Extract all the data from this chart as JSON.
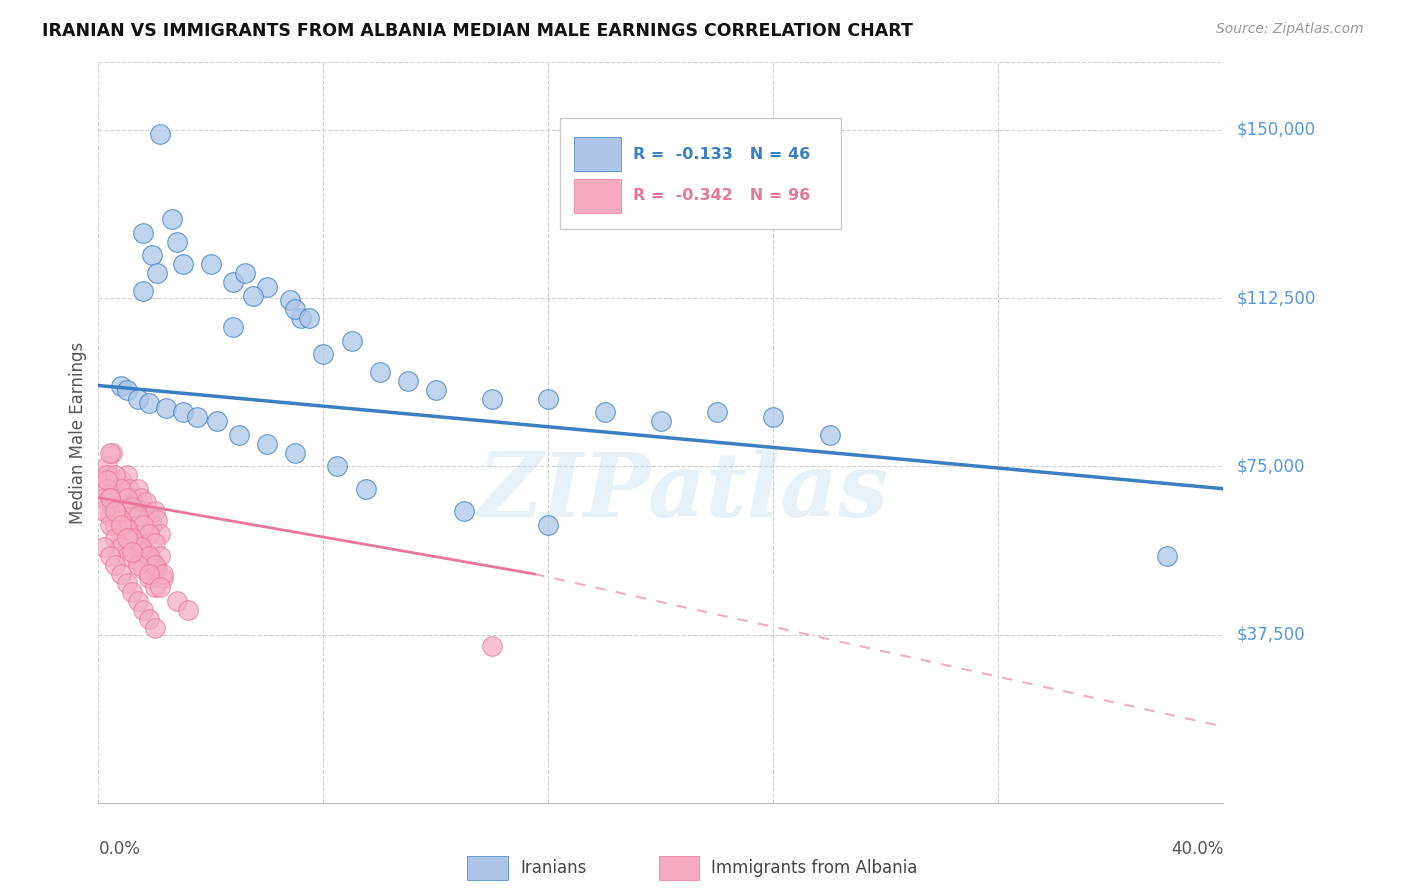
{
  "title": "IRANIAN VS IMMIGRANTS FROM ALBANIA MEDIAN MALE EARNINGS CORRELATION CHART",
  "source": "Source: ZipAtlas.com",
  "ylabel": "Median Male Earnings",
  "ytick_values": [
    37500,
    75000,
    112500,
    150000
  ],
  "ylim": [
    0,
    165000
  ],
  "xlim": [
    0.0,
    0.4
  ],
  "watermark": "ZIPatlas",
  "legend_r_iranian": "-0.133",
  "legend_n_iranian": "46",
  "legend_r_albania": "-0.342",
  "legend_n_albania": "96",
  "iranian_color": "#adc6e8",
  "albania_color": "#f5aac0",
  "iranian_line_color": "#3a7fc1",
  "albania_line_color": "#e8789a",
  "background_color": "#ffffff",
  "grid_color": "#d0d0d0",
  "iranians_x": [
    0.022,
    0.026,
    0.016,
    0.019,
    0.016,
    0.021,
    0.028,
    0.03,
    0.04,
    0.048,
    0.052,
    0.06,
    0.068,
    0.072,
    0.048,
    0.055,
    0.07,
    0.075,
    0.08,
    0.09,
    0.1,
    0.11,
    0.12,
    0.14,
    0.16,
    0.18,
    0.2,
    0.22,
    0.24,
    0.26,
    0.008,
    0.01,
    0.014,
    0.018,
    0.024,
    0.03,
    0.035,
    0.042,
    0.05,
    0.06,
    0.07,
    0.085,
    0.095,
    0.13,
    0.16,
    0.38
  ],
  "iranians_y": [
    149000,
    130000,
    127000,
    122000,
    114000,
    118000,
    125000,
    120000,
    120000,
    116000,
    118000,
    115000,
    112000,
    108000,
    106000,
    113000,
    110000,
    108000,
    100000,
    103000,
    96000,
    94000,
    92000,
    90000,
    90000,
    87000,
    85000,
    87000,
    86000,
    82000,
    93000,
    92000,
    90000,
    89000,
    88000,
    87000,
    86000,
    85000,
    82000,
    80000,
    78000,
    75000,
    70000,
    65000,
    62000,
    55000
  ],
  "albania_x": [
    0.003,
    0.004,
    0.005,
    0.006,
    0.007,
    0.008,
    0.009,
    0.01,
    0.011,
    0.012,
    0.013,
    0.014,
    0.015,
    0.016,
    0.017,
    0.018,
    0.019,
    0.02,
    0.021,
    0.022,
    0.003,
    0.005,
    0.007,
    0.009,
    0.011,
    0.013,
    0.015,
    0.017,
    0.019,
    0.021,
    0.004,
    0.006,
    0.008,
    0.01,
    0.012,
    0.014,
    0.016,
    0.018,
    0.02,
    0.022,
    0.003,
    0.005,
    0.007,
    0.009,
    0.011,
    0.013,
    0.015,
    0.018,
    0.02,
    0.023,
    0.002,
    0.004,
    0.006,
    0.008,
    0.01,
    0.012,
    0.014,
    0.016,
    0.018,
    0.02,
    0.003,
    0.004,
    0.006,
    0.008,
    0.01,
    0.012,
    0.015,
    0.018,
    0.02,
    0.023,
    0.002,
    0.004,
    0.006,
    0.008,
    0.01,
    0.014,
    0.018,
    0.022,
    0.028,
    0.032,
    0.002,
    0.004,
    0.006,
    0.008,
    0.01,
    0.012,
    0.014,
    0.016,
    0.018,
    0.02,
    0.004,
    0.006,
    0.008,
    0.01,
    0.012,
    0.14
  ],
  "albania_y": [
    75000,
    72000,
    78000,
    70000,
    68000,
    72000,
    68000,
    73000,
    70000,
    68000,
    66000,
    70000,
    68000,
    65000,
    67000,
    64000,
    62000,
    65000,
    63000,
    60000,
    73000,
    68000,
    67000,
    64000,
    62000,
    60000,
    58000,
    56000,
    54000,
    52000,
    78000,
    73000,
    70000,
    68000,
    66000,
    64000,
    62000,
    60000,
    58000,
    55000,
    70000,
    66000,
    64000,
    62000,
    60000,
    58000,
    56000,
    54000,
    52000,
    50000,
    68000,
    64000,
    62000,
    60000,
    58000,
    56000,
    54000,
    52000,
    50000,
    48000,
    72000,
    68000,
    65000,
    63000,
    61000,
    59000,
    57000,
    55000,
    53000,
    51000,
    65000,
    62000,
    59000,
    57000,
    55000,
    53000,
    51000,
    48000,
    45000,
    43000,
    57000,
    55000,
    53000,
    51000,
    49000,
    47000,
    45000,
    43000,
    41000,
    39000,
    68000,
    65000,
    62000,
    59000,
    56000,
    35000
  ],
  "iran_line_x0": 0.0,
  "iran_line_y0": 93000,
  "iran_line_x1": 0.4,
  "iran_line_y1": 70000,
  "alb_line_solid_x0": 0.0,
  "alb_line_solid_y0": 68000,
  "alb_line_solid_x1": 0.155,
  "alb_line_solid_y1": 51000,
  "alb_line_dash_x0": 0.155,
  "alb_line_dash_y0": 51000,
  "alb_line_dash_x1": 0.4,
  "alb_line_dash_y1": 17000
}
